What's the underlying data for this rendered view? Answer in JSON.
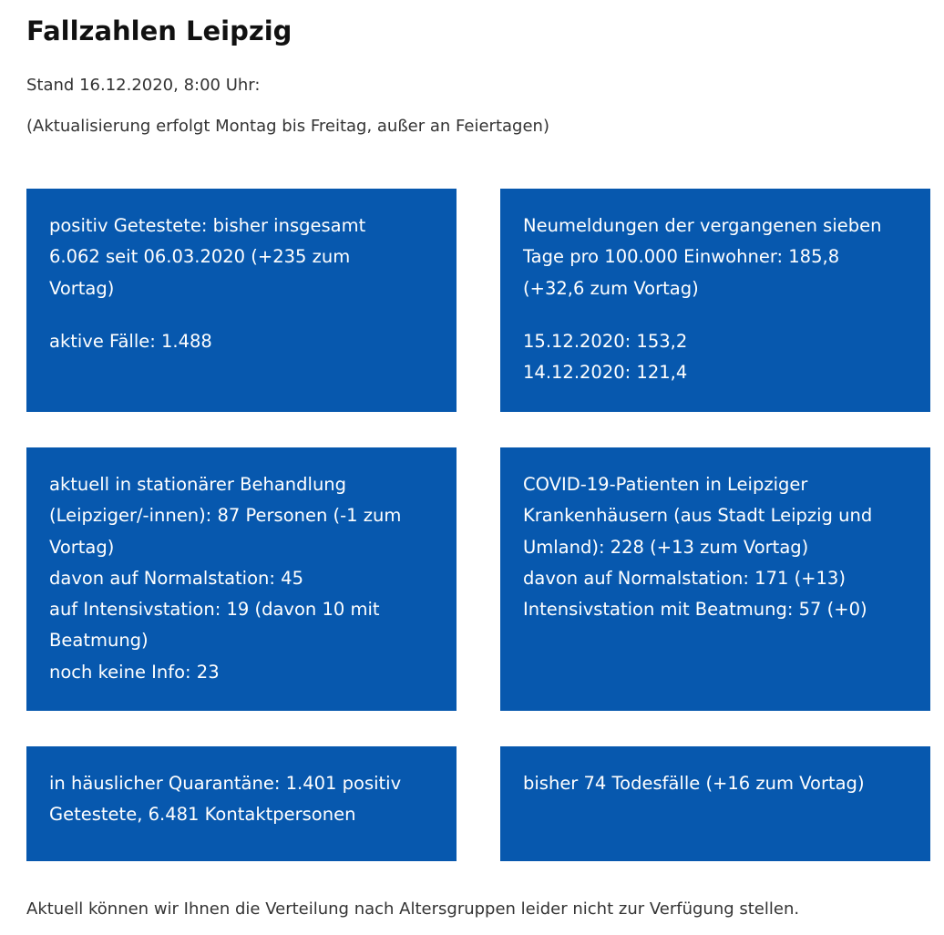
{
  "page": {
    "title": "Fallzahlen Leipzig",
    "stand": "Stand 16.12.2020, 8:00 Uhr:",
    "update_note": "(Aktualisierung erfolgt Montag bis Freitag, außer an Feiertagen)",
    "footer": "Aktuell können wir Ihnen die Verteilung nach Altersgruppen leider nicht zur Verfügung stellen."
  },
  "colors": {
    "box_background": "#0758ae",
    "box_text": "#ffffff"
  },
  "boxes": {
    "positive_tests": {
      "lines": [
        "positiv Getestete: bisher insgesamt",
        "6.062 seit 06.03.2020 (+235 zum",
        "Vortag)"
      ],
      "active": "aktive Fälle: 1.488"
    },
    "incidence": {
      "lines": [
        "Neumeldungen der vergangenen sieben",
        "Tage pro 100.000 Einwohner: 185,8",
        "(+32,6 zum Vortag)"
      ],
      "history": [
        "15.12.2020: 153,2",
        "14.12.2020: 121,4"
      ]
    },
    "hospital_residents": {
      "lines": [
        "aktuell in stationärer Behandlung",
        "(Leipziger/-innen): 87 Personen (-1 zum",
        "Vortag)",
        "davon auf Normalstation: 45",
        "auf Intensivstation: 19 (davon 10 mit",
        "Beatmung)",
        "noch keine Info: 23"
      ]
    },
    "hospital_patients": {
      "lines": [
        "COVID-19-Patienten in Leipziger",
        "Krankenhäusern (aus Stadt Leipzig und",
        "Umland): 228 (+13 zum Vortag)",
        "davon auf Normalstation: 171 (+13)",
        "Intensivstation mit Beatmung: 57 (+0)"
      ]
    },
    "quarantine": {
      "lines": [
        "in häuslicher Quarantäne: 1.401 positiv",
        "Getestete, 6.481 Kontaktpersonen"
      ]
    },
    "deaths": {
      "lines": [
        "bisher 74 Todesfälle (+16 zum Vortag)"
      ]
    }
  }
}
